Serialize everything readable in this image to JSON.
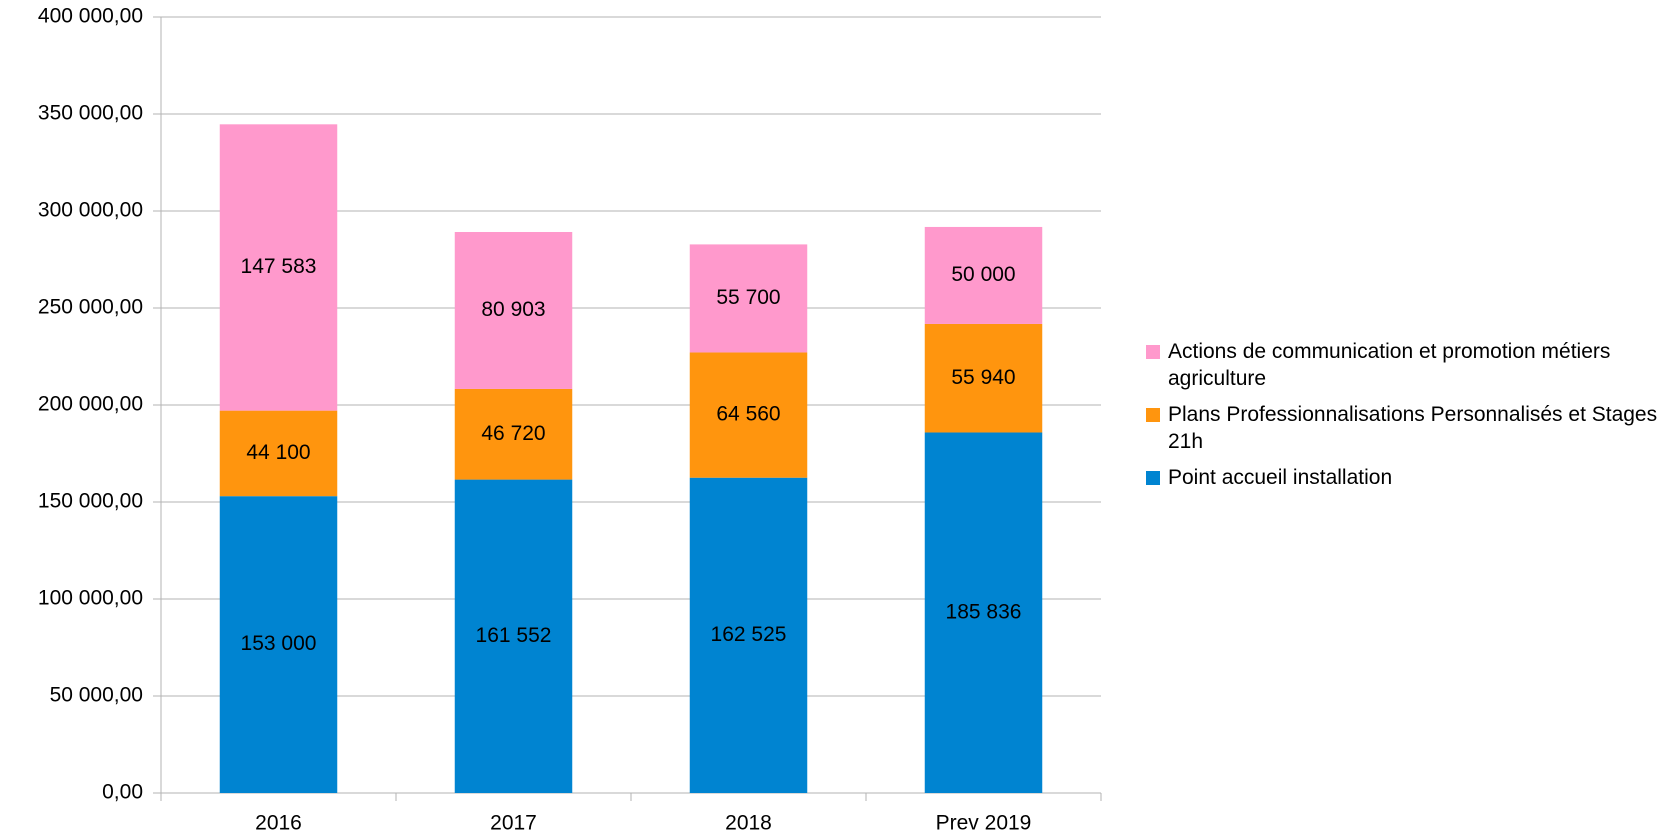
{
  "chart_data": {
    "type": "bar",
    "stacked": true,
    "categories": [
      "2016",
      "2017",
      "2018",
      "Prev 2019"
    ],
    "series": [
      {
        "name": "Point accueil installation",
        "color": "#0084d1",
        "values": [
          153000,
          161552,
          162525,
          185836
        ],
        "value_labels": [
          "153 000",
          "161 552",
          "162 525",
          "185 836"
        ]
      },
      {
        "name": "Plans Professionnalisations Personnalisés et Stages 21h",
        "color": "#ff950e",
        "values": [
          44100,
          46720,
          64560,
          55940
        ],
        "value_labels": [
          "44 100",
          "46 720",
          "64 560",
          "55 940"
        ]
      },
      {
        "name": "Actions de communication et promotion métiers agriculture",
        "color": "#ff99cc",
        "values": [
          147583,
          80903,
          55700,
          50000
        ],
        "value_labels": [
          "147 583",
          "80 903",
          "55 700",
          "50 000"
        ]
      }
    ],
    "ylim": [
      0,
      400000
    ],
    "yticks": [
      {
        "value": 0,
        "label": "0,00"
      },
      {
        "value": 50000,
        "label": "50 000,00"
      },
      {
        "value": 100000,
        "label": "100 000,00"
      },
      {
        "value": 150000,
        "label": "150 000,00"
      },
      {
        "value": 200000,
        "label": "200 000,00"
      },
      {
        "value": 250000,
        "label": "250 000,00"
      },
      {
        "value": 300000,
        "label": "300 000,00"
      },
      {
        "value": 350000,
        "label": "350 000,00"
      },
      {
        "value": 400000,
        "label": "400 000,00"
      }
    ],
    "grid": true,
    "legend": "right"
  }
}
